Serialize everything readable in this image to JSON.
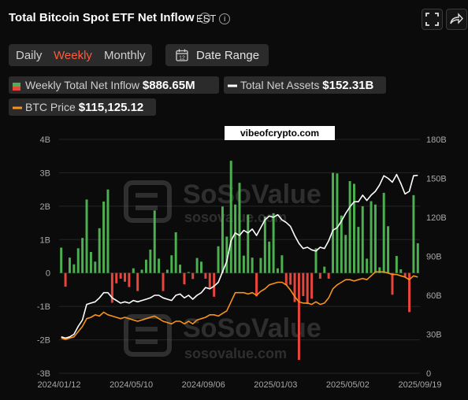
{
  "header": {
    "title": "Total Bitcoin Spot ETF Net Inflow",
    "timezone": "EST"
  },
  "tabs": [
    {
      "label": "Daily",
      "active": false
    },
    {
      "label": "Weekly",
      "active": true
    },
    {
      "label": "Monthly",
      "active": false
    }
  ],
  "date_range_label": "Date Range",
  "legend": {
    "inflow_label": "Weekly Total Net Inflow",
    "inflow_value": "$886.65M",
    "assets_label": "Total Net Assets",
    "assets_value": "$152.31B",
    "btc_label": "BTC Price",
    "btc_value": "$115,125.12"
  },
  "overlay_text": "vibeofcrypto.com",
  "watermark": {
    "name": "SoSoValue",
    "url": "sosovalue.com"
  },
  "colors": {
    "inflow_positive": "#4caf50",
    "inflow_negative": "#e8453c",
    "total_net_assets": "#ffffff",
    "btc_price": "#f7931a",
    "active_tab": "#ff5a3c",
    "background": "#0b0b0b"
  },
  "chart_data": {
    "type": "bar+line",
    "title": "Total Bitcoin Spot ETF Net Inflow",
    "x_tick_labels": [
      "2024/01/12",
      "2024/05/10",
      "2024/09/06",
      "2025/01/03",
      "2025/05/02",
      "2025/09/19"
    ],
    "y_left_ticks": [
      "4B",
      "3B",
      "2B",
      "1B",
      "0",
      "-1B",
      "-2B",
      "-3B"
    ],
    "y_left_range": [
      -3,
      4
    ],
    "y_left_unit": "B USD",
    "y_right_ticks": [
      "180B",
      "150B",
      "120B",
      "90B",
      "60B",
      "30B",
      "0"
    ],
    "y_right_range": [
      0,
      180
    ],
    "grid": true,
    "series": [
      {
        "name": "Weekly Total Net Inflow",
        "kind": "bar",
        "unit": "B USD",
        "values": [
          0.76,
          -0.41,
          0.46,
          0.26,
          0.74,
          1.05,
          2.2,
          0.63,
          0.34,
          1.34,
          2.14,
          2.5,
          -0.89,
          -0.31,
          -0.17,
          -0.26,
          -0.42,
          0.14,
          -0.54,
          0.1,
          0.4,
          0.7,
          1.87,
          0.43,
          -0.54,
          0.1,
          0.53,
          1.22,
          0.25,
          -0.34,
          0.03,
          -0.18,
          0.45,
          0.34,
          -0.17,
          -0.44,
          -0.71,
          0.8,
          1.99,
          1.09,
          3.36,
          2.05,
          2.7,
          0.52,
          1.75,
          0.46,
          -0.7,
          0.45,
          1.69,
          0.94,
          1.79,
          0.14,
          0.53,
          -0.36,
          -0.35,
          -0.87,
          -2.6,
          -0.69,
          -0.93,
          -0.77,
          0.74,
          -0.17,
          0.19,
          -0.17,
          3.0,
          2.98,
          1.72,
          1.14,
          2.75,
          2.67,
          1.38,
          2.0,
          0.43,
          2.15,
          2.05,
          0.17,
          2.4,
          1.4,
          -0.65,
          0.51,
          0.11,
          -0.12,
          -1.17,
          2.33,
          0.89
        ]
      },
      {
        "name": "Total Net Assets",
        "kind": "line",
        "unit": "B USD",
        "values": [
          28,
          27,
          28,
          30,
          36,
          41,
          53,
          54,
          55,
          58,
          62,
          62,
          58,
          56,
          54,
          55,
          54,
          56,
          55,
          56,
          57,
          58,
          60,
          60,
          58,
          57,
          56,
          60,
          61,
          58,
          60,
          57,
          60,
          62,
          66,
          65,
          67,
          70,
          78,
          86,
          102,
          108,
          106,
          110,
          108,
          111,
          106,
          112,
          118,
          121,
          120,
          122,
          118,
          116,
          113,
          106,
          100,
          96,
          97,
          95,
          94,
          97,
          96,
          102,
          110,
          112,
          117,
          123,
          128,
          132,
          132,
          137,
          133,
          137,
          140,
          145,
          152,
          150,
          147,
          153,
          146,
          138,
          140,
          152,
          152.31
        ]
      },
      {
        "name": "BTC Price",
        "kind": "line",
        "unit": "B USD (right-axis scale)",
        "values": [
          27,
          26,
          27,
          28,
          32,
          36,
          42,
          43,
          45,
          44,
          47,
          45,
          44,
          43,
          42,
          43,
          42,
          41,
          40,
          41,
          42,
          43,
          44,
          42,
          40,
          39,
          38,
          40,
          40,
          38,
          40,
          38,
          41,
          42,
          43,
          45,
          45,
          44,
          46,
          48,
          55,
          62,
          62,
          62,
          61,
          62,
          60,
          63,
          65,
          68,
          69,
          70,
          70,
          68,
          64,
          59,
          55,
          54,
          54,
          53,
          55,
          53,
          54,
          58,
          65,
          68,
          70,
          72,
          72,
          71,
          72,
          73,
          72,
          75,
          78,
          78,
          78,
          77,
          76,
          76,
          75,
          74,
          72,
          75,
          74
        ]
      }
    ]
  }
}
